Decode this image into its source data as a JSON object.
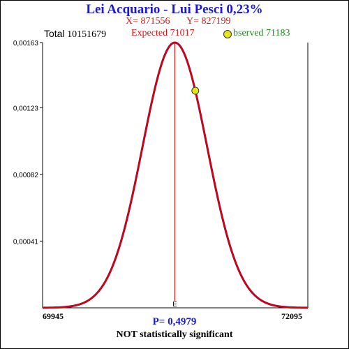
{
  "header": {
    "title": "Lei Acquario - Lui Pesci  0,23%",
    "x_label": "X= 871556",
    "y_label": "Y= 827199",
    "total_label": "Total",
    "total_value": "10151679",
    "expected_text": "Expected  71017",
    "observed_text": "bserved  71183"
  },
  "footer": {
    "p_value": "P= 0,4979",
    "verdict": "NOT statistically significant"
  },
  "chart_data": {
    "type": "line",
    "x_range": [
      69945,
      72095
    ],
    "y_range": [
      0,
      0.00163
    ],
    "y_ticks": [
      "0,00163",
      "0,00123",
      "0,00082",
      "0,00041"
    ],
    "y_tick_values": [
      0.00163,
      0.00123,
      0.00082,
      0.00041
    ],
    "x_tick_labels": [
      "69945",
      "72095"
    ],
    "expected": 71017,
    "observed": 71183,
    "expected_marker_label": "E",
    "curve_color": "#dd0000",
    "curve_shadow_color": "#2222aa",
    "expected_line_color": "#dd0000",
    "observed_marker_color": "#e5e51a"
  }
}
